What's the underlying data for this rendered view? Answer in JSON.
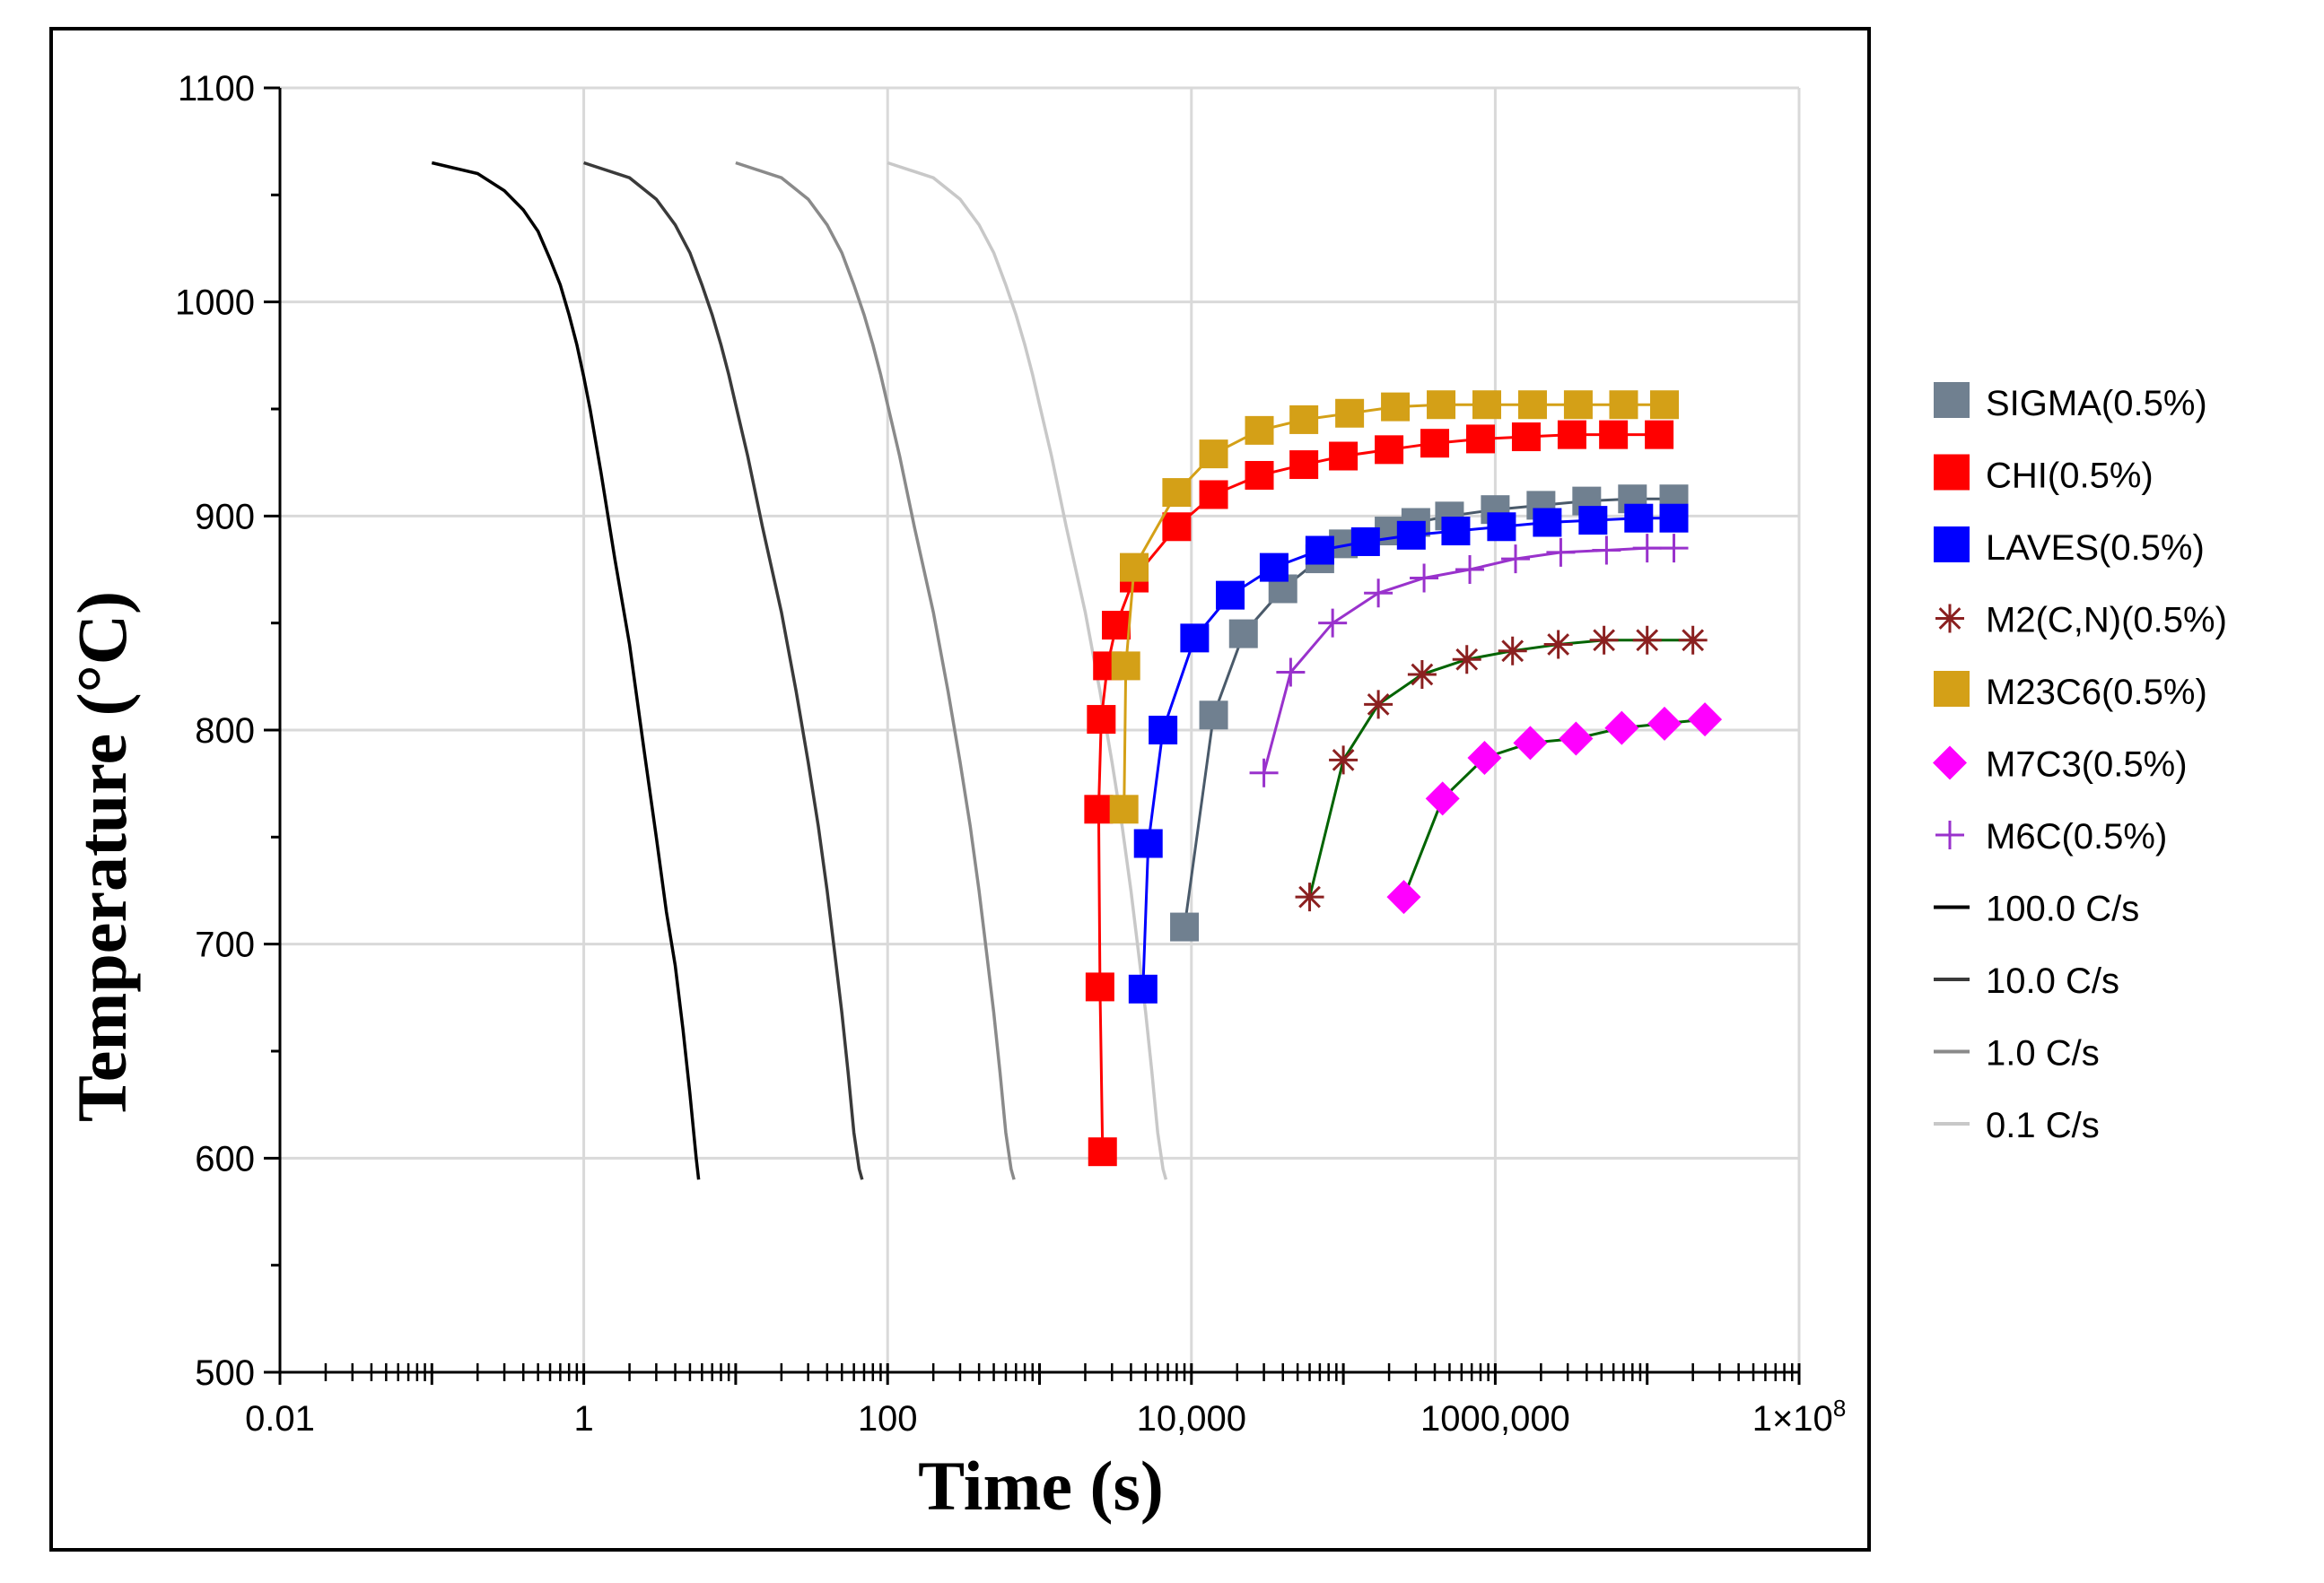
{
  "chart_data": {
    "type": "line",
    "title": "",
    "xlabel": "Time (s)",
    "ylabel": "Temperature (°C)",
    "xscale": "log",
    "xlim": [
      0.01,
      100000000
    ],
    "ylim": [
      500,
      1100
    ],
    "grid": true,
    "legend_position": "right",
    "x_tick_labels": [
      {
        "value": 0.01,
        "label": "0.01"
      },
      {
        "value": 1,
        "label": "1"
      },
      {
        "value": 100,
        "label": "100"
      },
      {
        "value": 10000,
        "label": "10,000"
      },
      {
        "value": 1000000,
        "label": "1000,000"
      },
      {
        "value": 100000000,
        "label": "1×10",
        "sup": "8"
      }
    ],
    "y_ticks": [
      500,
      600,
      700,
      800,
      900,
      1000,
      1100
    ],
    "cooling_curves": [
      {
        "name": "100.0 C/s",
        "color": "#000000",
        "points": [
          [
            0.1,
            1065
          ],
          [
            0.2,
            1060
          ],
          [
            0.3,
            1052
          ],
          [
            0.4,
            1043
          ],
          [
            0.5,
            1033
          ],
          [
            0.6,
            1020
          ],
          [
            0.7,
            1008
          ],
          [
            0.8,
            994
          ],
          [
            0.9,
            980
          ],
          [
            1.0,
            965
          ],
          [
            1.1,
            950
          ],
          [
            1.3,
            920
          ],
          [
            1.6,
            880
          ],
          [
            2.0,
            840
          ],
          [
            2.5,
            790
          ],
          [
            3,
            750
          ],
          [
            3.5,
            715
          ],
          [
            4,
            690
          ],
          [
            4.5,
            660
          ],
          [
            5,
            630
          ],
          [
            5.5,
            600
          ],
          [
            5.7,
            590
          ]
        ]
      },
      {
        "name": "10.0 C/s",
        "color": "#3a3a3a",
        "points": [
          [
            1,
            1065
          ],
          [
            2,
            1058
          ],
          [
            3,
            1048
          ],
          [
            4,
            1036
          ],
          [
            5,
            1023
          ],
          [
            6,
            1008
          ],
          [
            7,
            994
          ],
          [
            8,
            980
          ],
          [
            9,
            966
          ],
          [
            10,
            952
          ],
          [
            12,
            928
          ],
          [
            15,
            895
          ],
          [
            20,
            855
          ],
          [
            25,
            818
          ],
          [
            30,
            785
          ],
          [
            35,
            755
          ],
          [
            40,
            725
          ],
          [
            45,
            695
          ],
          [
            50,
            668
          ],
          [
            55,
            640
          ],
          [
            60,
            612
          ],
          [
            65,
            595
          ],
          [
            68,
            590
          ]
        ]
      },
      {
        "name": "1.0 C/s",
        "color": "#8a8a8a",
        "points": [
          [
            10,
            1065
          ],
          [
            20,
            1058
          ],
          [
            30,
            1048
          ],
          [
            40,
            1036
          ],
          [
            50,
            1023
          ],
          [
            60,
            1008
          ],
          [
            70,
            994
          ],
          [
            80,
            980
          ],
          [
            90,
            966
          ],
          [
            100,
            952
          ],
          [
            120,
            928
          ],
          [
            150,
            895
          ],
          [
            200,
            855
          ],
          [
            250,
            818
          ],
          [
            300,
            785
          ],
          [
            350,
            755
          ],
          [
            400,
            725
          ],
          [
            450,
            695
          ],
          [
            500,
            668
          ],
          [
            550,
            640
          ],
          [
            600,
            612
          ],
          [
            650,
            595
          ],
          [
            680,
            590
          ]
        ]
      },
      {
        "name": "0.1 C/s",
        "color": "#c8c8c8",
        "points": [
          [
            100,
            1065
          ],
          [
            200,
            1058
          ],
          [
            300,
            1048
          ],
          [
            400,
            1036
          ],
          [
            500,
            1023
          ],
          [
            600,
            1008
          ],
          [
            700,
            994
          ],
          [
            800,
            980
          ],
          [
            900,
            966
          ],
          [
            1000,
            952
          ],
          [
            1200,
            928
          ],
          [
            1500,
            895
          ],
          [
            2000,
            855
          ],
          [
            2500,
            818
          ],
          [
            3000,
            785
          ],
          [
            3500,
            755
          ],
          [
            4000,
            725
          ],
          [
            4500,
            695
          ],
          [
            5000,
            668
          ],
          [
            5500,
            640
          ],
          [
            6000,
            612
          ],
          [
            6500,
            595
          ],
          [
            6800,
            590
          ]
        ]
      }
    ],
    "series": [
      {
        "name": "SIGMA(0.5%)",
        "color": "#708090",
        "line": "#4a5a6a",
        "marker": "square",
        "points": [
          [
            9000,
            708
          ],
          [
            14000,
            807
          ],
          [
            22000,
            845
          ],
          [
            40000,
            866
          ],
          [
            70000,
            880
          ],
          [
            100000,
            887
          ],
          [
            200000,
            893
          ],
          [
            300000,
            897
          ],
          [
            500000,
            900
          ],
          [
            1000000,
            903
          ],
          [
            2000000,
            905
          ],
          [
            4000000,
            907
          ],
          [
            8000000,
            908
          ],
          [
            15000000,
            908
          ]
        ]
      },
      {
        "name": "CHI(0.5%)",
        "color": "#ff0000",
        "line": "#ff0000",
        "marker": "square",
        "points": [
          [
            2600,
            603
          ],
          [
            2500,
            680
          ],
          [
            2450,
            763
          ],
          [
            2550,
            805
          ],
          [
            2800,
            830
          ],
          [
            3200,
            849
          ],
          [
            4200,
            871
          ],
          [
            8000,
            895
          ],
          [
            14000,
            910
          ],
          [
            28000,
            919
          ],
          [
            55000,
            924
          ],
          [
            100000,
            928
          ],
          [
            200000,
            931
          ],
          [
            400000,
            934
          ],
          [
            800000,
            936
          ],
          [
            1600000,
            937
          ],
          [
            3200000,
            938
          ],
          [
            6000000,
            938
          ],
          [
            12000000,
            938
          ]
        ]
      },
      {
        "name": "LAVES(0.5%)",
        "color": "#0000ff",
        "line": "#0000ff",
        "marker": "square",
        "points": [
          [
            4800,
            679
          ],
          [
            5200,
            747
          ],
          [
            6500,
            800
          ],
          [
            10500,
            843
          ],
          [
            18000,
            863
          ],
          [
            35000,
            876
          ],
          [
            70000,
            884
          ],
          [
            140000,
            888
          ],
          [
            280000,
            891
          ],
          [
            550000,
            893
          ],
          [
            1100000,
            895
          ],
          [
            2200000,
            897
          ],
          [
            4400000,
            898
          ],
          [
            8800000,
            899
          ],
          [
            15000000,
            899
          ]
        ]
      },
      {
        "name": "M2(C,N)(0.5%)",
        "color": "#8b2020",
        "line": "#006400",
        "marker": "star",
        "points": [
          [
            60000,
            722
          ],
          [
            100000,
            786
          ],
          [
            170000,
            812
          ],
          [
            330000,
            826
          ],
          [
            650000,
            833
          ],
          [
            1300000,
            837
          ],
          [
            2600000,
            840
          ],
          [
            5200000,
            842
          ],
          [
            10000000,
            842
          ],
          [
            20000000,
            842
          ]
        ]
      },
      {
        "name": "M23C6(0.5%)",
        "color": "#d4a017",
        "line": "#d4a017",
        "marker": "square",
        "points": [
          [
            3600,
            763
          ],
          [
            3700,
            830
          ],
          [
            4200,
            876
          ],
          [
            8000,
            911
          ],
          [
            14000,
            929
          ],
          [
            28000,
            940
          ],
          [
            55000,
            945
          ],
          [
            110000,
            948
          ],
          [
            220000,
            951
          ],
          [
            440000,
            952
          ],
          [
            880000,
            952
          ],
          [
            1760000,
            952
          ],
          [
            3520000,
            952
          ],
          [
            7000000,
            952
          ],
          [
            13000000,
            952
          ]
        ]
      },
      {
        "name": "M7C3(0.5%)",
        "color": "#ff00ff",
        "line": "#006400",
        "marker": "diamond",
        "points": [
          [
            250000,
            722
          ],
          [
            450000,
            768
          ],
          [
            850000,
            787
          ],
          [
            1700000,
            794
          ],
          [
            3400000,
            796
          ],
          [
            6800000,
            801
          ],
          [
            13000000,
            803
          ],
          [
            24000000,
            805
          ]
        ]
      },
      {
        "name": "M6C(0.5%)",
        "color": "#9932cc",
        "line": "#9932cc",
        "marker": "plus",
        "points": [
          [
            30000,
            780
          ],
          [
            45000,
            827
          ],
          [
            85000,
            850
          ],
          [
            170000,
            864
          ],
          [
            340000,
            871
          ],
          [
            680000,
            875
          ],
          [
            1360000,
            880
          ],
          [
            2700000,
            883
          ],
          [
            5400000,
            884
          ],
          [
            10000000,
            885
          ],
          [
            15000000,
            885
          ]
        ]
      }
    ]
  }
}
